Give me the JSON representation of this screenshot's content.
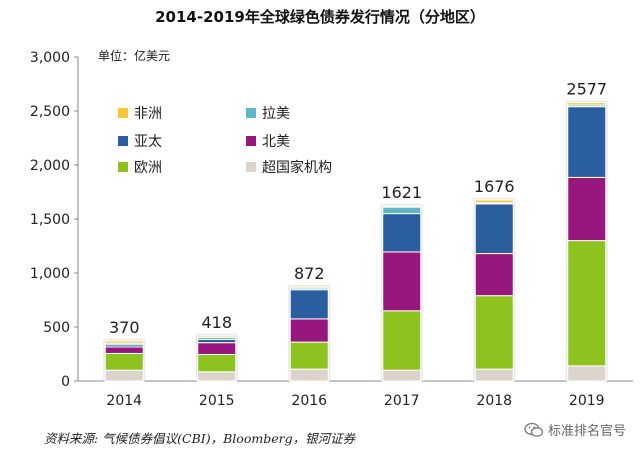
{
  "title": "2014-2019年全球绿色债券发行情况（分地区）",
  "source": "资料来源: 气候债券倡议(CBI)，Bloomberg，银河证券",
  "watermark": {
    "text": "标准排名官号",
    "icon": "wechat-logo-icon"
  },
  "chart_data": {
    "type": "bar",
    "stacked": true,
    "unit_label": "单位：亿美元",
    "categories": [
      "2014",
      "2015",
      "2016",
      "2017",
      "2018",
      "2019"
    ],
    "series": [
      {
        "name": "超国家机构",
        "color": "#DCD3CB",
        "values": [
          100,
          85,
          110,
          100,
          110,
          140
        ]
      },
      {
        "name": "欧洲",
        "color": "#8DC21F",
        "values": [
          155,
          160,
          250,
          550,
          680,
          1160
        ]
      },
      {
        "name": "北美",
        "color": "#97177E",
        "values": [
          60,
          110,
          215,
          545,
          390,
          585
        ]
      },
      {
        "name": "亚太",
        "color": "#2B5E9F",
        "values": [
          20,
          30,
          270,
          355,
          460,
          655
        ]
      },
      {
        "name": "拉美",
        "color": "#5FB6CB",
        "values": [
          15,
          20,
          15,
          60,
          10,
          15
        ]
      },
      {
        "name": "非洲",
        "color": "#F5C936",
        "values": [
          20,
          13,
          12,
          11,
          26,
          22
        ]
      }
    ],
    "totals": [
      "370",
      "418",
      "872",
      "1621",
      "1676",
      "2577"
    ],
    "ylim": [
      0,
      3000
    ],
    "yticks": [
      "0",
      "500",
      "1,000",
      "1,500",
      "2,000",
      "2,500",
      "3,000"
    ],
    "legend": [
      {
        "name": "非洲",
        "color": "#F5C936"
      },
      {
        "name": "拉美",
        "color": "#5FB6CB"
      },
      {
        "name": "亚太",
        "color": "#2B5E9F"
      },
      {
        "name": "北美",
        "color": "#97177E"
      },
      {
        "name": "欧洲",
        "color": "#8DC21F"
      },
      {
        "name": "超国家机构",
        "color": "#DCD3CB"
      }
    ],
    "legend_position": "top-left",
    "grid": false
  }
}
